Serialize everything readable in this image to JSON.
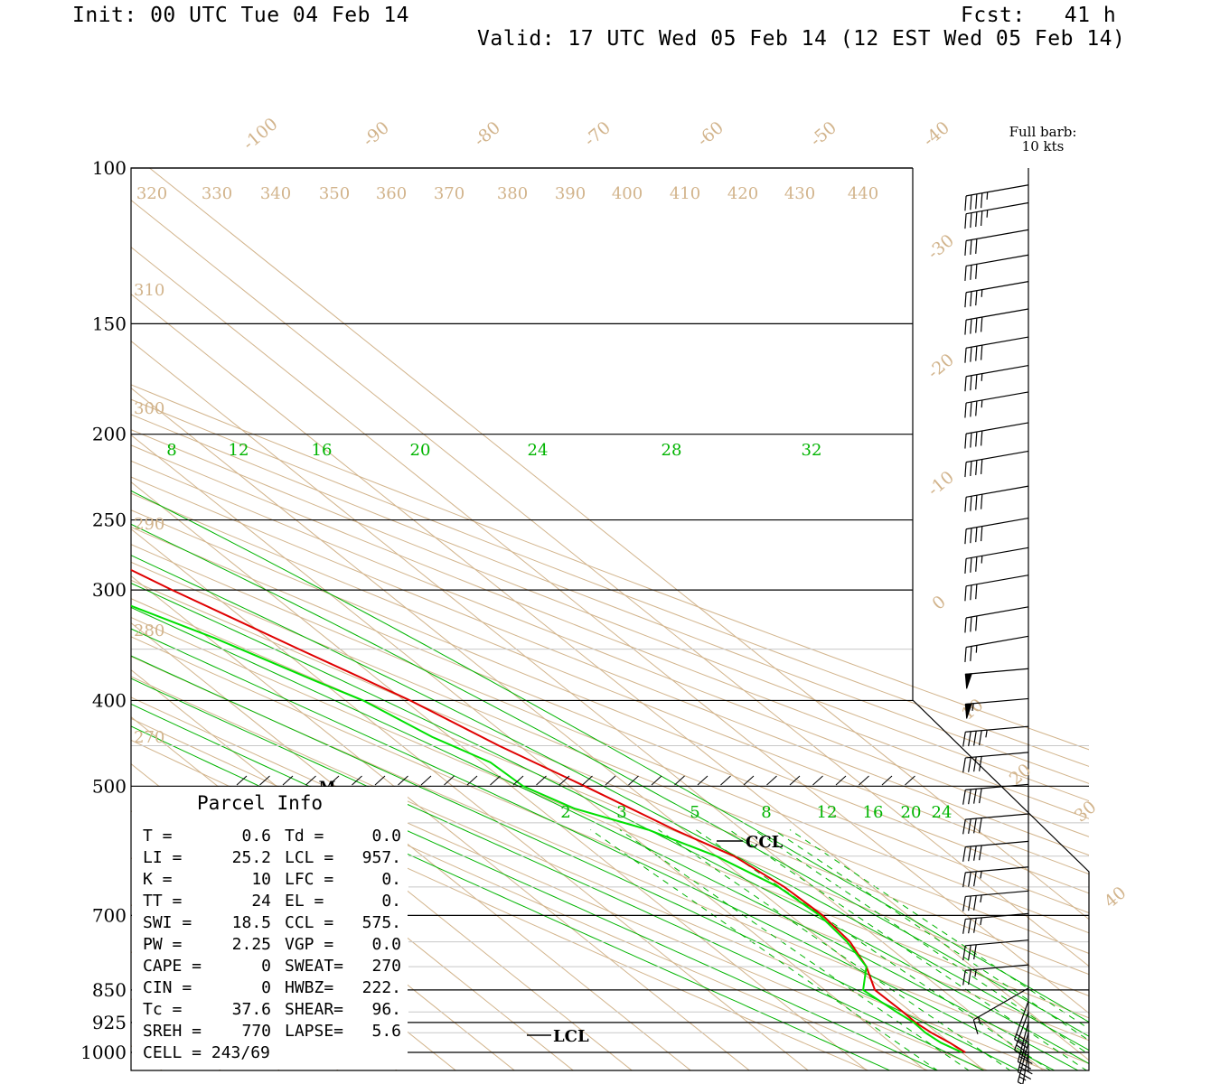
{
  "header": {
    "init": "Init: 00 UTC Tue 04 Feb 14",
    "fcst": "Fcst:   41 h",
    "valid": "Valid: 17 UTC Wed 05 Feb 14 (12 EST Wed 05 Feb 14)"
  },
  "barb_legend": {
    "line1": "Full barb:",
    "line2": "10 kts"
  },
  "colors": {
    "temperature": "#e00000",
    "dewpoint": "#00e000",
    "isotherm": "#d2b48c",
    "mixing_ratio": "#00b400",
    "frame": "#000000"
  },
  "chart_data": {
    "type": "line",
    "diagram": "skew-T log-P",
    "pressure_ticks": [
      100,
      150,
      200,
      250,
      300,
      400,
      500,
      700,
      850,
      925,
      1000
    ],
    "isotherm_labels": [
      "-100",
      "-90",
      "-80",
      "-70",
      "-60",
      "-50",
      "-40",
      "-30",
      "-20",
      "-10",
      "0",
      "10",
      "20",
      "30",
      "40"
    ],
    "theta_top_labels": [
      "320",
      "330",
      "340",
      "350",
      "360",
      "370",
      "380",
      "390",
      "400",
      "410",
      "420",
      "430",
      "440"
    ],
    "theta_left_labels": [
      "310",
      "300",
      "290",
      "280",
      "270"
    ],
    "mixing_ratio_labels_upper": [
      "8",
      "12",
      "16",
      "20",
      "24",
      "28",
      "32"
    ],
    "mixing_ratio_labels_lower": [
      "2",
      "3",
      "5",
      "8",
      "12",
      "16",
      "20",
      "24"
    ],
    "series": [
      {
        "type": "temperature",
        "units": "hPa, deg C",
        "points": [
          [
            1000,
            0.6
          ],
          [
            975,
            0.0
          ],
          [
            950,
            -1.0
          ],
          [
            925,
            -1.5
          ],
          [
            900,
            -1.4
          ],
          [
            850,
            -1.5
          ],
          [
            800,
            2.0
          ],
          [
            750,
            4.5
          ],
          [
            700,
            5.5
          ],
          [
            650,
            5.0
          ],
          [
            600,
            3.0
          ],
          [
            560,
            -1.5
          ],
          [
            500,
            -7.5
          ],
          [
            450,
            -13.5
          ],
          [
            400,
            -19.0
          ],
          [
            380,
            -22.0
          ],
          [
            350,
            -27.0
          ],
          [
            300,
            -36.0
          ],
          [
            250,
            -45.5
          ],
          [
            220,
            -51.0
          ],
          [
            200,
            -54.0
          ],
          [
            180,
            -56.0
          ],
          [
            170,
            -56.5
          ],
          [
            160,
            -55.0
          ],
          [
            150,
            -53.0
          ],
          [
            130,
            -46.0
          ],
          [
            120,
            -47.0
          ],
          [
            110,
            -50.0
          ],
          [
            103,
            -51.0
          ]
        ]
      },
      {
        "type": "dewpoint",
        "units": "hPa, deg C",
        "points": [
          [
            1000,
            0.0
          ],
          [
            975,
            -1.5
          ],
          [
            950,
            -2.0
          ],
          [
            925,
            -1.8
          ],
          [
            900,
            -2.5
          ],
          [
            850,
            -3.5
          ],
          [
            800,
            2.0
          ],
          [
            750,
            4.0
          ],
          [
            700,
            5.0
          ],
          [
            650,
            4.0
          ],
          [
            600,
            0.0
          ],
          [
            560,
            -6.0
          ],
          [
            530,
            -14.0
          ],
          [
            500,
            -18.0
          ],
          [
            470,
            -18.5
          ],
          [
            440,
            -23.0
          ],
          [
            400,
            -27.0
          ],
          [
            380,
            -31.0
          ],
          [
            340,
            -39.0
          ],
          [
            300,
            -50.0
          ],
          [
            280,
            -56.0
          ],
          [
            250,
            -62.0
          ],
          [
            220,
            -67.0
          ],
          [
            200,
            -68.0
          ],
          [
            180,
            -71.0
          ],
          [
            170,
            -72.0
          ],
          [
            160,
            -75.0
          ],
          [
            150,
            -78.0
          ],
          [
            140,
            -81.0
          ],
          [
            130,
            -81.0
          ],
          [
            120,
            -77.0
          ],
          [
            110,
            -75.0
          ],
          [
            103,
            -74.0
          ]
        ]
      }
    ],
    "markers": {
      "M_hPa": 500,
      "CCL_hPa": 575,
      "LCL_hPa": 957
    }
  },
  "wind_barbs": {
    "units": "kts",
    "upper": [
      [
        105,
        260,
        45
      ],
      [
        110,
        260,
        45
      ],
      [
        118,
        260,
        30
      ],
      [
        126,
        260,
        30
      ],
      [
        135,
        260,
        35
      ],
      [
        145,
        260,
        40
      ],
      [
        156,
        260,
        40
      ],
      [
        168,
        260,
        35
      ],
      [
        180,
        260,
        35
      ],
      [
        195,
        260,
        40
      ],
      [
        210,
        260,
        40
      ],
      [
        230,
        260,
        40
      ],
      [
        250,
        260,
        40
      ],
      [
        270,
        260,
        35
      ],
      [
        290,
        260,
        30
      ],
      [
        315,
        260,
        30
      ],
      [
        340,
        260,
        25
      ],
      [
        370,
        265,
        50
      ],
      [
        400,
        265,
        55
      ],
      [
        430,
        265,
        45
      ],
      [
        460,
        265,
        40
      ],
      [
        500,
        265,
        40
      ],
      [
        540,
        265,
        40
      ],
      [
        580,
        265,
        40
      ],
      [
        620,
        265,
        35
      ],
      [
        660,
        265,
        35
      ],
      [
        700,
        265,
        35
      ],
      [
        750,
        265,
        30
      ],
      [
        800,
        265,
        25
      ],
      [
        850,
        240,
        15
      ]
    ],
    "lower": [
      [
        875,
        200,
        20
      ],
      [
        900,
        200,
        25
      ],
      [
        925,
        195,
        25
      ],
      [
        950,
        195,
        20
      ],
      [
        975,
        195,
        15
      ],
      [
        1000,
        190,
        15
      ]
    ]
  },
  "parcel": {
    "title": "Parcel Info",
    "rows": [
      [
        "T  =",
        "0.6",
        "Td =",
        "0.0"
      ],
      [
        "LI =",
        "25.2",
        "LCL =",
        "957."
      ],
      [
        "K  =",
        "10",
        "LFC =",
        "0."
      ],
      [
        "TT =",
        "24",
        "EL  =",
        "0."
      ],
      [
        "SWI =",
        "18.5",
        "CCL =",
        "575."
      ],
      [
        "PW =",
        "2.25",
        "VGP =",
        "0.0"
      ],
      [
        "CAPE =",
        "0",
        "SWEAT=",
        "270"
      ],
      [
        "CIN  =",
        "0",
        "HWBZ=",
        "222."
      ],
      [
        "Tc =",
        "37.6",
        "SHEAR=",
        "96."
      ],
      [
        "SREH =",
        "770",
        "LAPSE=",
        "5.6"
      ],
      [
        "CELL = 243/69",
        "",
        "",
        ""
      ]
    ]
  },
  "marker_labels": {
    "m": "M",
    "ccl": "CCL",
    "lcl": "LCL"
  }
}
